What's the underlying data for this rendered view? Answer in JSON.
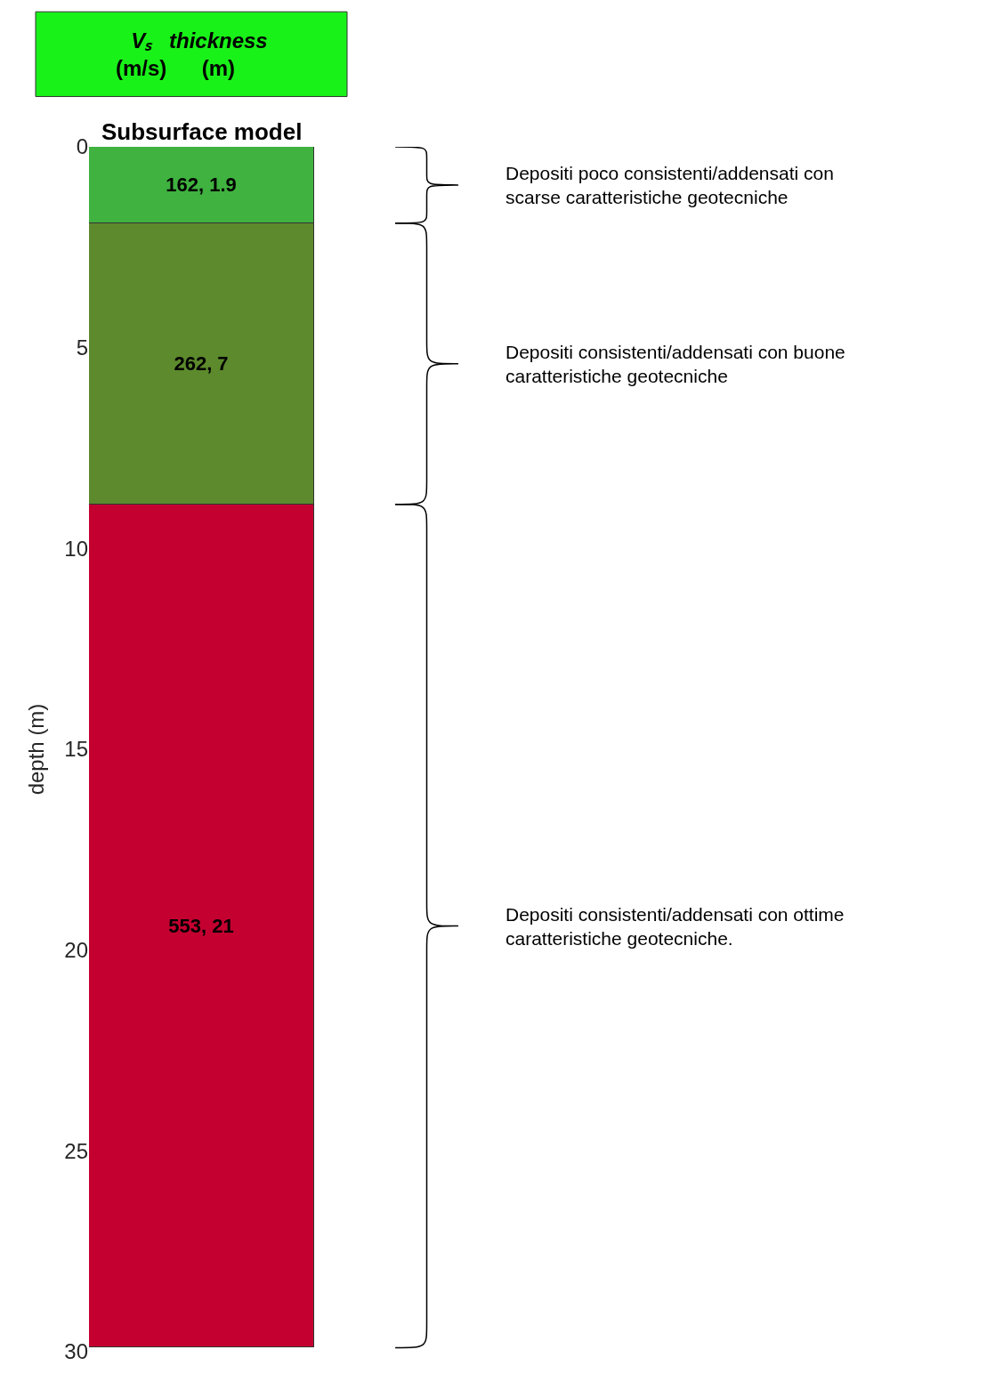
{
  "chart_data": {
    "type": "bar",
    "stacked": true,
    "title": "Subsurface model",
    "ylabel": "depth (m)",
    "categories": [
      null
    ],
    "series": [
      {
        "color": "#3fb23f",
        "values": [
          1.9
        ],
        "value_labels": [
          "162, 1.9"
        ]
      },
      {
        "color": "#5c8a2c",
        "values": [
          7
        ],
        "value_labels": [
          "262, 7"
        ]
      },
      {
        "color": "#c40030",
        "values": [
          21
        ],
        "value_labels": [
          "553, 21"
        ]
      }
    ],
    "ylim": [
      30,
      0
    ],
    "yticks": [
      0,
      5,
      10,
      15,
      20,
      25,
      30
    ],
    "tick_labels": "y",
    "annotations": [
      "Vₛ (m/s)",
      "thickness (m)",
      "Depositi poco consistenti/addensati con scarse caratteristiche geotecniche",
      "Depositi consistenti/addensati con buone caratteristiche geotecniche",
      "Depositi consistenti/addensati con ottime caratteristiche geotecniche."
    ]
  }
}
